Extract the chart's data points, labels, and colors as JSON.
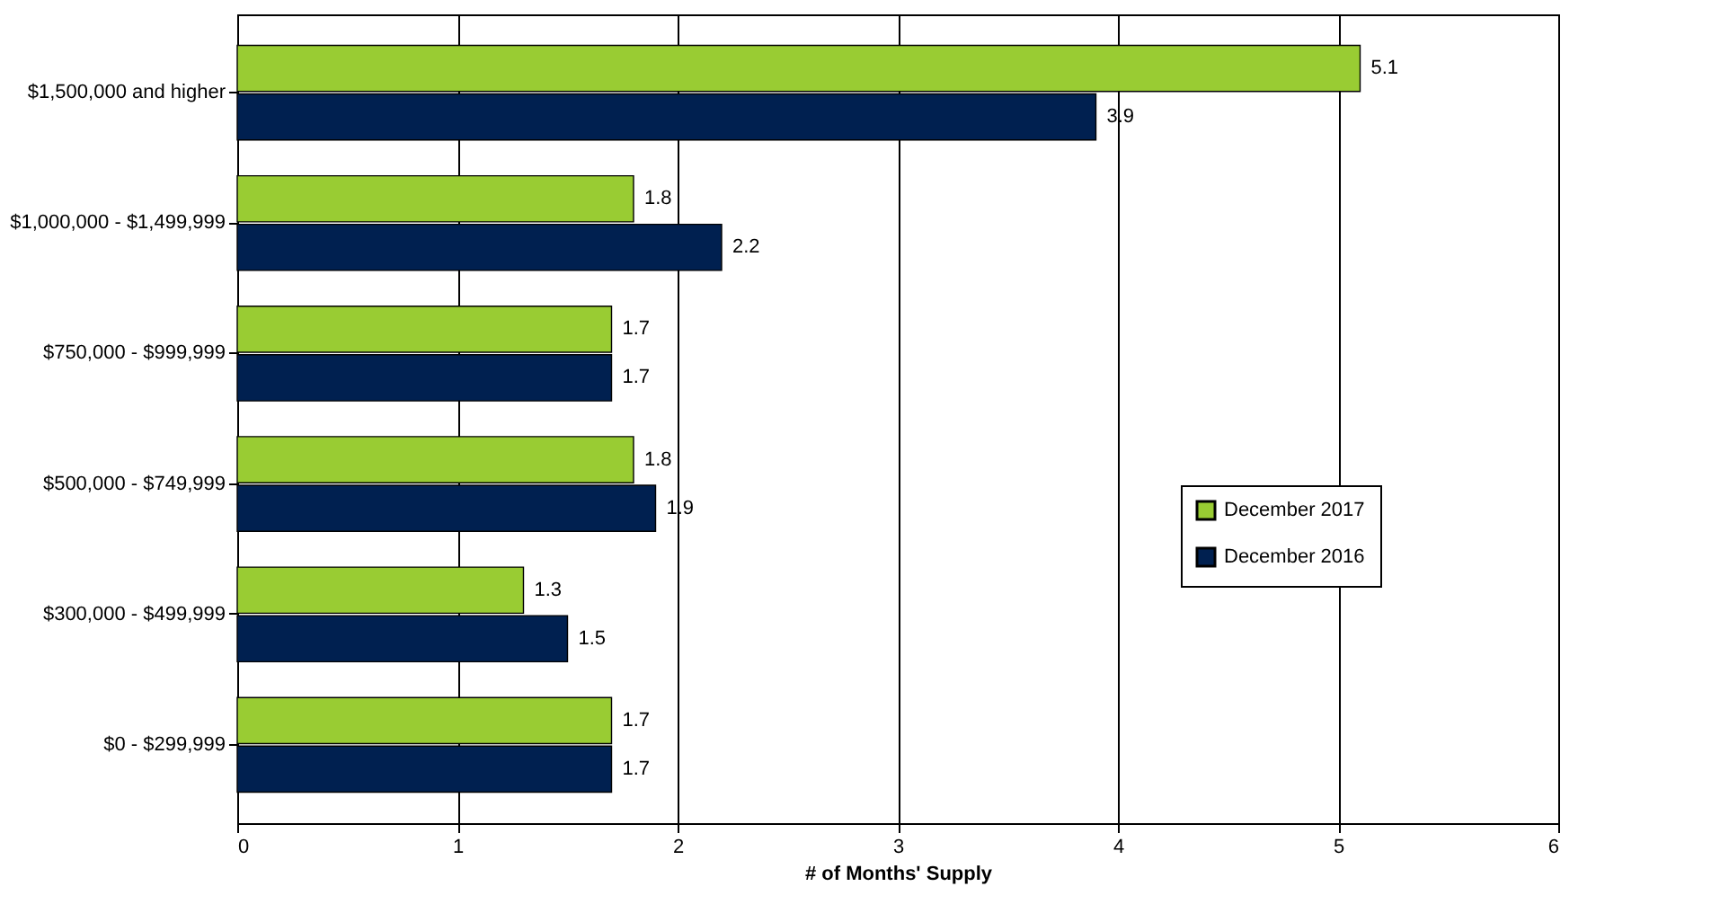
{
  "chart_data": {
    "type": "bar",
    "orientation": "horizontal",
    "xlabel": "# of Months' Supply",
    "categories": [
      "$1,500,000 and higher",
      "$1,000,000 - $1,499,999",
      "$750,000 - $999,999",
      "$500,000 - $749,999",
      "$300,000 - $499,999",
      "$0 - $299,999"
    ],
    "series": [
      {
        "name": "December 2017",
        "color": "#99cc33",
        "values": [
          5.1,
          1.8,
          1.7,
          1.8,
          1.3,
          1.7
        ]
      },
      {
        "name": "December 2016",
        "color": "#002050",
        "values": [
          3.9,
          2.2,
          1.7,
          1.9,
          1.5,
          1.7
        ]
      }
    ],
    "xlim": [
      0,
      6
    ],
    "xticks": [
      0,
      1,
      2,
      3,
      4,
      5,
      6
    ],
    "grid": "x",
    "legend": "right",
    "data_labels": true
  }
}
